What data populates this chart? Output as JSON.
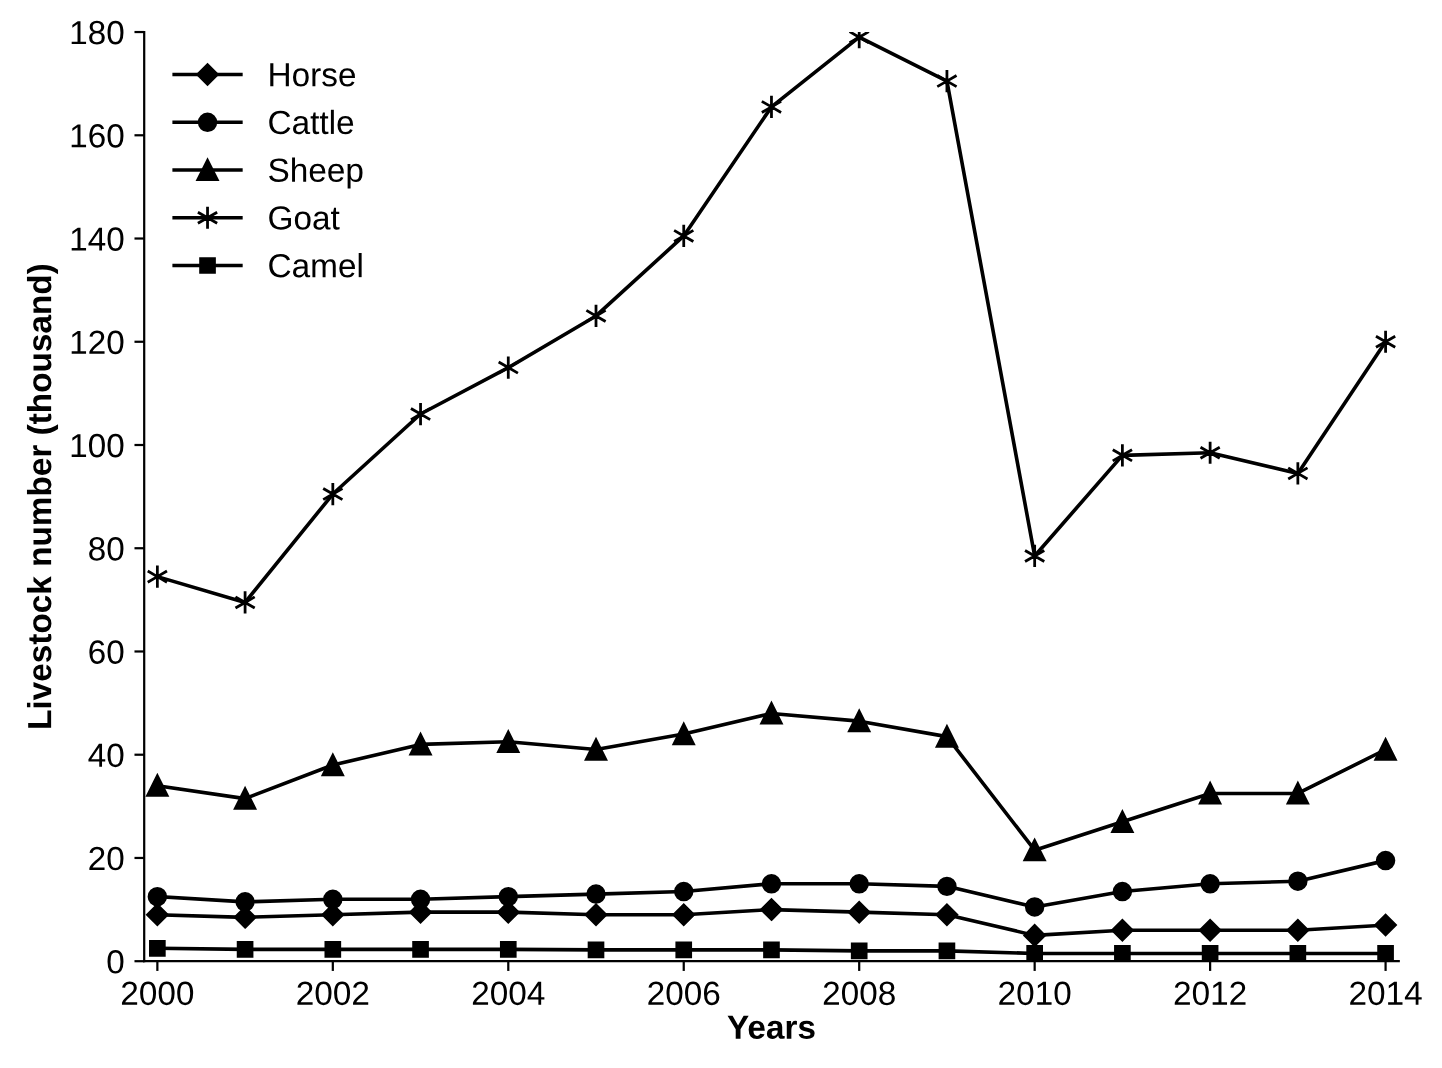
{
  "chart_data": {
    "type": "line",
    "xlabel": "Years",
    "ylabel": "Livestock number (thousand)",
    "x": [
      2000,
      2001,
      2002,
      2003,
      2004,
      2005,
      2006,
      2007,
      2008,
      2009,
      2010,
      2011,
      2012,
      2013,
      2014
    ],
    "xlim": [
      1999.85,
      2014.15
    ],
    "xticks": [
      2000,
      2002,
      2004,
      2006,
      2008,
      2010,
      2012,
      2014
    ],
    "ylim": [
      0,
      180
    ],
    "yticks": [
      0,
      20,
      40,
      60,
      80,
      100,
      120,
      140,
      160,
      180
    ],
    "grid": false,
    "legend": "top left",
    "series": [
      {
        "name": "Horse",
        "color": "#000000",
        "marker": "diamond",
        "values": [
          9,
          8.5,
          9,
          9.5,
          9.5,
          9,
          9,
          10,
          9.5,
          9,
          5,
          6,
          6,
          6,
          7
        ]
      },
      {
        "name": "Cattle",
        "color": "#000000",
        "marker": "circle",
        "values": [
          12.5,
          11.5,
          12,
          12,
          12.5,
          13,
          13.5,
          15,
          15,
          14.5,
          10.5,
          13.5,
          15,
          15.5,
          19.5
        ]
      },
      {
        "name": "Sheep",
        "color": "#000000",
        "marker": "triangle",
        "values": [
          34,
          31.5,
          38,
          42,
          42.5,
          41,
          44,
          48,
          46.5,
          43.5,
          21.5,
          27,
          32.5,
          32.5,
          41
        ]
      },
      {
        "name": "Goat",
        "color": "#000000",
        "marker": "cross",
        "values": [
          74.5,
          69.5,
          90.5,
          106,
          115,
          125,
          140.5,
          165.5,
          179,
          170.5,
          78.5,
          98,
          98.5,
          94.5,
          120
        ]
      },
      {
        "name": "Camel",
        "color": "#000000",
        "marker": "square",
        "values": [
          2.5,
          2.3,
          2.3,
          2.3,
          2.3,
          2.2,
          2.2,
          2.2,
          2,
          2,
          1.5,
          1.5,
          1.5,
          1.5,
          1.5
        ]
      }
    ]
  }
}
